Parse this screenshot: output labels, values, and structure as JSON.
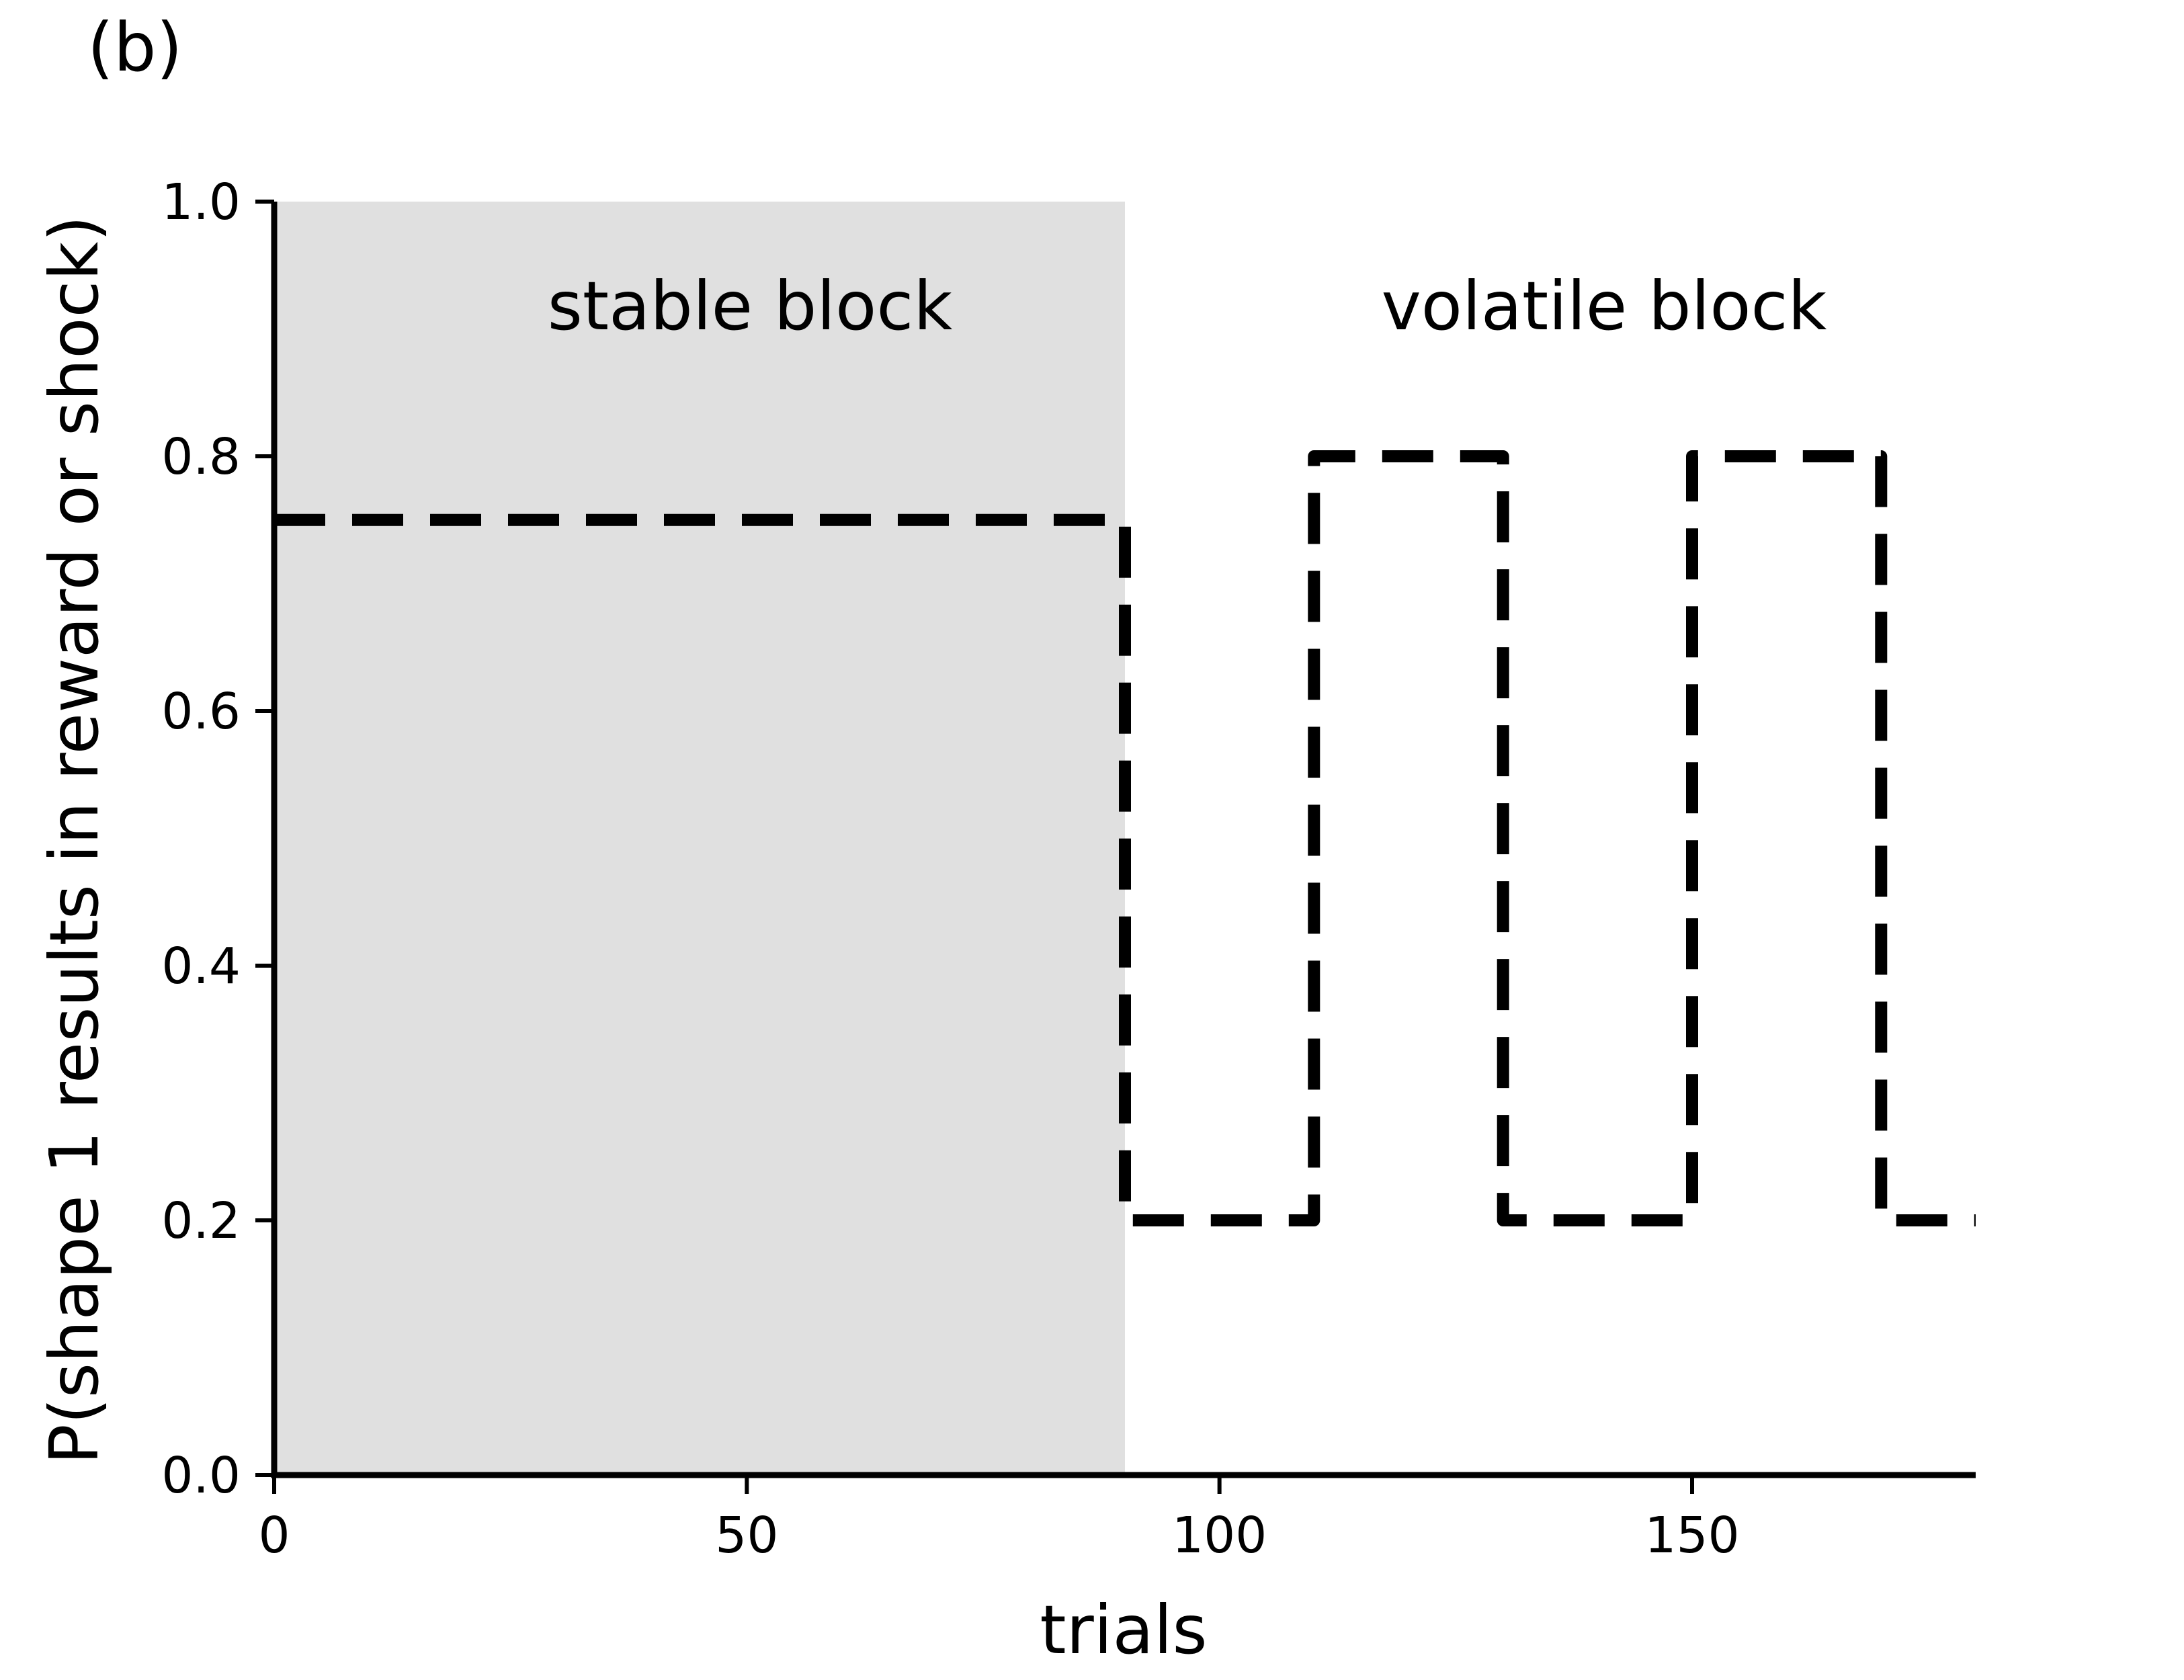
{
  "panel_label": "(b)",
  "chart_data": {
    "type": "line",
    "xlabel": "trials",
    "ylabel": "P(shape 1 results in reward or shock)",
    "xlim": [
      0,
      180
    ],
    "ylim": [
      0,
      1.0
    ],
    "x_ticks": [
      0,
      50,
      100,
      150
    ],
    "y_ticks": [
      0.0,
      0.2,
      0.4,
      0.6,
      0.8,
      1.0
    ],
    "x_tick_labels": [
      "0",
      "50",
      "100",
      "150"
    ],
    "y_tick_labels": [
      "0.0",
      "0.2",
      "0.4",
      "0.6",
      "0.8",
      "1.0"
    ],
    "grid": false,
    "legend": "none",
    "shaded_region": {
      "label": "stable block",
      "x_start": 0,
      "x_end": 90,
      "color": "#e0e0e0"
    },
    "unshaded_region_label": "volatile block",
    "series": [
      {
        "style": "dashed-step",
        "color": "#000000",
        "x": [
          0,
          90,
          90,
          110,
          110,
          130,
          130,
          150,
          150,
          170,
          170,
          180
        ],
        "y": [
          0.75,
          0.75,
          0.2,
          0.2,
          0.8,
          0.8,
          0.2,
          0.2,
          0.8,
          0.8,
          0.2,
          0.2
        ]
      }
    ]
  }
}
